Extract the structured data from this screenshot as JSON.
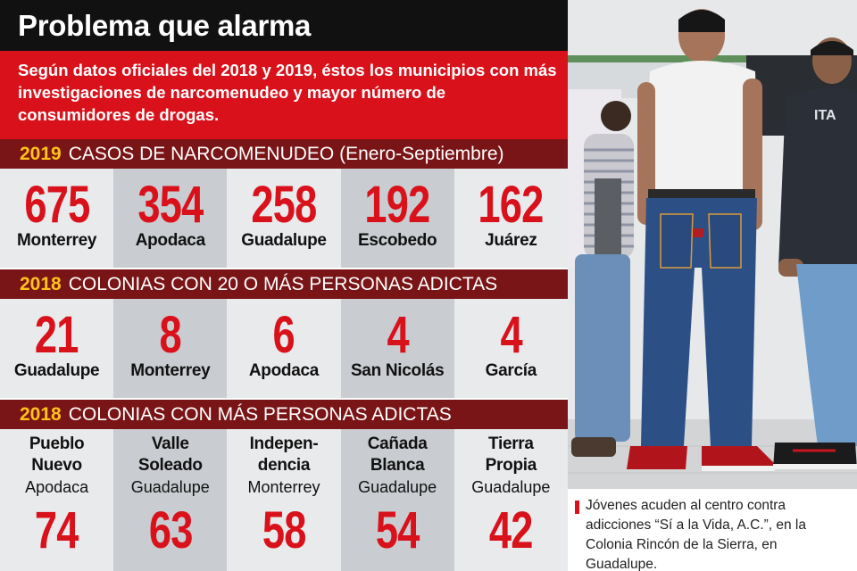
{
  "title": "Problema que alarma",
  "intro": "Según datos oficiales del 2018 y 2019, éstos los municipios con más investigaciones de narcomenudeo y mayor número de consumidores de drogas.",
  "sections": [
    {
      "year": "2019",
      "heading": "CASOS DE NARCOMENUDEO (Enero-Septiembre)",
      "items": [
        {
          "value": "675",
          "place": "Monterrey"
        },
        {
          "value": "354",
          "place": "Apodaca"
        },
        {
          "value": "258",
          "place": "Guadalupe"
        },
        {
          "value": "192",
          "place": "Escobedo"
        },
        {
          "value": "162",
          "place": "Juárez"
        }
      ]
    },
    {
      "year": "2018",
      "heading": "COLONIAS CON 20 O MÁS PERSONAS ADICTAS",
      "items": [
        {
          "value": "21",
          "place": "Guadalupe"
        },
        {
          "value": "8",
          "place": "Monterrey"
        },
        {
          "value": "6",
          "place": "Apodaca"
        },
        {
          "value": "4",
          "place": "San Nicolás"
        },
        {
          "value": "4",
          "place": "García"
        }
      ]
    },
    {
      "year": "2018",
      "heading": "COLONIAS CON MÁS PERSONAS ADICTAS",
      "items": [
        {
          "name_line1": "Pueblo",
          "name_line2": "Nuevo",
          "municipality": "Apodaca",
          "value": "74"
        },
        {
          "name_line1": "Valle",
          "name_line2": "Soleado",
          "municipality": "Guadalupe",
          "value": "63"
        },
        {
          "name_line1": "Indepen-",
          "name_line2": "dencia",
          "municipality": "Monterrey",
          "value": "58"
        },
        {
          "name_line1": "Cañada",
          "name_line2": "Blanca",
          "municipality": "Guadalupe",
          "value": "54"
        },
        {
          "name_line1": "Tierra",
          "name_line2": "Propia",
          "municipality": "Guadalupe",
          "value": "42"
        }
      ]
    }
  ],
  "photo": {
    "jacket_text": "ITA"
  },
  "caption": "Jóvenes acuden al centro contra adicciones “Sí a la Vida, A.C.”, en la Colonia Rincón de la Sierra, en Guadalupe.",
  "colors": {
    "accent_red": "#d9111b",
    "section_bar": "#7a1517",
    "year_yellow": "#ffc21a",
    "title_bar": "#111111",
    "cell_light": "#e9eaec",
    "cell_dark": "#c9ccd0"
  }
}
